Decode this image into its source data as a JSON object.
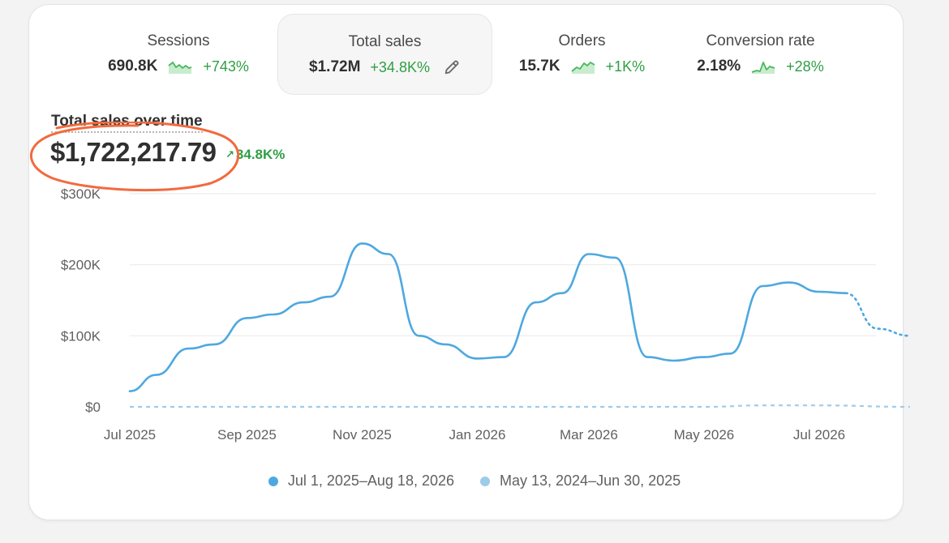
{
  "metrics": [
    {
      "title": "Sessions",
      "value": "690.8K",
      "change": "+743%",
      "spark_icon": "sparkline-sessions-icon"
    },
    {
      "title": "Total sales",
      "value": "$1.72M",
      "change": "+34.8K%",
      "spark_icon": "pencil-icon",
      "selected": true
    },
    {
      "title": "Orders",
      "value": "15.7K",
      "change": "+1K%",
      "spark_icon": "sparkline-orders-icon"
    },
    {
      "title": "Conversion rate",
      "value": "2.18%",
      "change": "+28%",
      "spark_icon": "sparkline-conversion-icon"
    }
  ],
  "chart_header": {
    "title": "Total sales over time",
    "total": "$1,722,217.79",
    "change": "34.8K%"
  },
  "colors": {
    "primary_series": "#4ea8e0",
    "comparison_series": "#9fcbea",
    "positive": "#2f9e44",
    "annotation": "#f26a3d"
  },
  "chart_data": {
    "type": "line",
    "x_labels": [
      "Jul 2025",
      "Sep 2025",
      "Nov 2025",
      "Jan 2026",
      "Mar 2026",
      "May 2026",
      "Jul 2026"
    ],
    "y_labels": [
      "$300K",
      "$200K",
      "$100K",
      "$0"
    ],
    "ylim": [
      0,
      300000
    ],
    "grid": true,
    "legend_position": "bottom",
    "series": [
      {
        "name": "Jul 1, 2025–Aug 18, 2026",
        "x": [
          "2025-07-01",
          "2025-07-15",
          "2025-08-01",
          "2025-08-15",
          "2025-09-01",
          "2025-09-15",
          "2025-10-01",
          "2025-10-15",
          "2025-11-01",
          "2025-11-15",
          "2025-12-01",
          "2025-12-15",
          "2026-01-01",
          "2026-01-15",
          "2026-02-01",
          "2026-02-15",
          "2026-03-01",
          "2026-03-15",
          "2026-04-01",
          "2026-04-15",
          "2026-05-01",
          "2026-05-15",
          "2026-06-01",
          "2026-06-15",
          "2026-07-01",
          "2026-07-15",
          "2026-08-01",
          "2026-08-18"
        ],
        "values": [
          22000,
          45000,
          82000,
          88000,
          125000,
          130000,
          147000,
          155000,
          230000,
          215000,
          100000,
          88000,
          68000,
          70000,
          147000,
          160000,
          215000,
          210000,
          70000,
          65000,
          70000,
          75000,
          170000,
          175000,
          162000,
          160000,
          110000,
          100000
        ],
        "projected_from_index": 25
      },
      {
        "name": "May 13, 2024–Jun 30, 2025",
        "x": [
          "2025-07-01",
          "2025-09-01",
          "2025-11-01",
          "2026-01-01",
          "2026-03-01",
          "2026-05-01",
          "2026-06-01",
          "2026-07-01",
          "2026-08-18"
        ],
        "values": [
          0,
          0,
          0,
          0,
          0,
          0,
          2000,
          2000,
          0
        ],
        "dashed": true
      }
    ]
  }
}
